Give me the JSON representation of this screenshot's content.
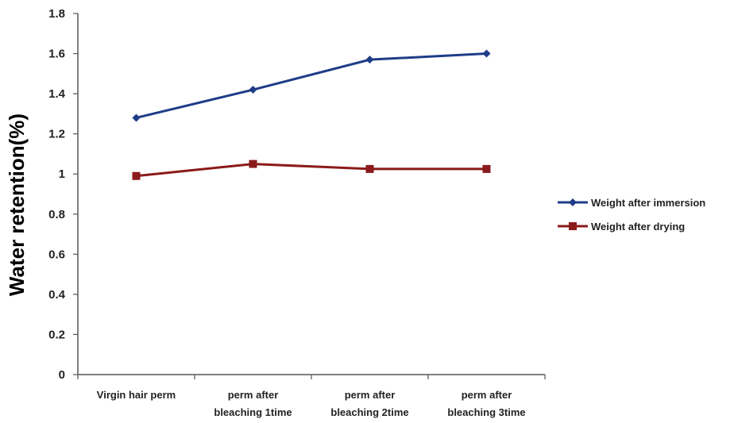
{
  "chart_data": {
    "type": "line",
    "title": "",
    "xlabel": "",
    "ylabel": "Water retention(%)",
    "ylim": [
      0,
      1.8
    ],
    "yticks": [
      "0",
      "0.2",
      "0.4",
      "0.6",
      "0.8",
      "1",
      "1.2",
      "1.4",
      "1.6",
      "1.8"
    ],
    "categories": [
      [
        "Virgin hair perm"
      ],
      [
        "perm after",
        "bleaching 1time"
      ],
      [
        "perm after",
        "bleaching 2time"
      ],
      [
        "perm after",
        "bleaching 3time"
      ]
    ],
    "series": [
      {
        "name": "Weight after immersion",
        "color": "#1f3c88",
        "marker": "diamond",
        "values": [
          1.28,
          1.42,
          1.57,
          1.6
        ]
      },
      {
        "name": "Weight after drying",
        "color": "#8b1a1a",
        "marker": "square",
        "values": [
          0.99,
          1.05,
          1.025,
          1.025
        ]
      }
    ],
    "grid": false,
    "legend": "right"
  }
}
